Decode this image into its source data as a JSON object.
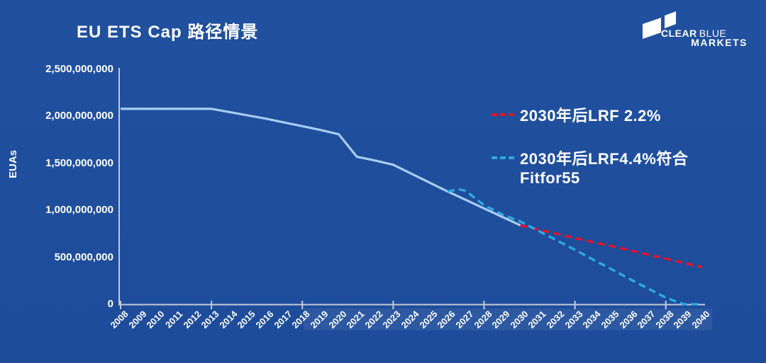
{
  "page": {
    "background_color": "#1F4E9C",
    "text_color": "#FFFFFF"
  },
  "header": {
    "title": "EU ETS Cap 路径情景",
    "logo": {
      "word1": "CLEAR",
      "word2": "BLUE",
      "word3": "MARKETS"
    }
  },
  "colors": {
    "solid_line": "#A9CCF1",
    "red_dashed": "#E11428",
    "cyan_dashed": "#2FA9E1",
    "axis": "#C4CAD6"
  },
  "legend": {
    "items": [
      {
        "label": "2030年后LRF 2.2%",
        "color": "#E11428",
        "style": "dashed"
      },
      {
        "label_line1": "2030年后LRF4.4%符合",
        "label_line2": "Fitfor55",
        "color": "#2FA9E1",
        "style": "dashed"
      }
    ]
  },
  "chart_data": {
    "type": "line",
    "title": "EU ETS Cap 路径情景",
    "xlabel": "",
    "ylabel": "EUAs",
    "ylim": [
      0,
      2500000000
    ],
    "grid": false,
    "legend_position": "right-overlay",
    "x_categories": [
      2008,
      2009,
      2010,
      2011,
      2012,
      2013,
      2014,
      2015,
      2016,
      2017,
      2018,
      2019,
      2020,
      2021,
      2022,
      2023,
      2024,
      2025,
      2026,
      2027,
      2028,
      2029,
      2030,
      2031,
      2032,
      2033,
      2034,
      2035,
      2036,
      2037,
      2038,
      2039,
      2040
    ],
    "x_ticks_every": 5,
    "y_ticks": [
      {
        "value": 0,
        "label": "0"
      },
      {
        "value": 500000000,
        "label": "500,000,000"
      },
      {
        "value": 1000000000,
        "label": "1,000,000,000"
      },
      {
        "value": 1500000000,
        "label": "1,500,000,000"
      },
      {
        "value": 2000000000,
        "label": "2,000,000,000"
      },
      {
        "value": 2500000000,
        "label": "2,500,000,000"
      }
    ],
    "series": [
      {
        "name": "ets-cap-actual",
        "legend_label": "",
        "style": "solid",
        "color": "#A9CCF1",
        "points": [
          [
            2008,
            2080000000
          ],
          [
            2009,
            2080000000
          ],
          [
            2010,
            2080000000
          ],
          [
            2011,
            2080000000
          ],
          [
            2012,
            2080000000
          ],
          [
            2013,
            2080000000
          ],
          [
            2014,
            2045000000
          ],
          [
            2015,
            2010000000
          ],
          [
            2016,
            1975000000
          ],
          [
            2017,
            1935000000
          ],
          [
            2018,
            1895000000
          ],
          [
            2019,
            1855000000
          ],
          [
            2020,
            1810000000
          ],
          [
            2021,
            1570000000
          ],
          [
            2022,
            1530000000
          ],
          [
            2023,
            1485000000
          ],
          [
            2024,
            1390000000
          ],
          [
            2025,
            1295000000
          ],
          [
            2026,
            1200000000
          ],
          [
            2027,
            1110000000
          ],
          [
            2028,
            1020000000
          ],
          [
            2029,
            930000000
          ],
          [
            2030,
            840000000
          ]
        ]
      },
      {
        "name": "lrf-2.2-after-2030",
        "legend_label": "2030年后LRF 2.2%",
        "style": "dashed",
        "color": "#E11428",
        "points": [
          [
            2030,
            840000000
          ],
          [
            2031,
            795000000
          ],
          [
            2032,
            750000000
          ],
          [
            2033,
            705000000
          ],
          [
            2034,
            660000000
          ],
          [
            2035,
            620000000
          ],
          [
            2036,
            575000000
          ],
          [
            2037,
            530000000
          ],
          [
            2038,
            485000000
          ],
          [
            2039,
            440000000
          ],
          [
            2040,
            395000000
          ]
        ]
      },
      {
        "name": "lrf-4.4-fitfor55",
        "legend_label": "2030年后LRF4.4%符合 Fitfor55",
        "style": "dashed",
        "color": "#2FA9E1",
        "points": [
          [
            2026,
            1200000000
          ],
          [
            2026.6,
            1225000000
          ],
          [
            2027,
            1205000000
          ],
          [
            2028,
            1055000000
          ],
          [
            2029,
            955000000
          ],
          [
            2030,
            880000000
          ],
          [
            2031,
            780000000
          ],
          [
            2032,
            680000000
          ],
          [
            2033,
            580000000
          ],
          [
            2034,
            475000000
          ],
          [
            2035,
            375000000
          ],
          [
            2036,
            270000000
          ],
          [
            2037,
            170000000
          ],
          [
            2038,
            70000000
          ],
          [
            2039,
            0
          ],
          [
            2040,
            0
          ]
        ]
      }
    ]
  }
}
